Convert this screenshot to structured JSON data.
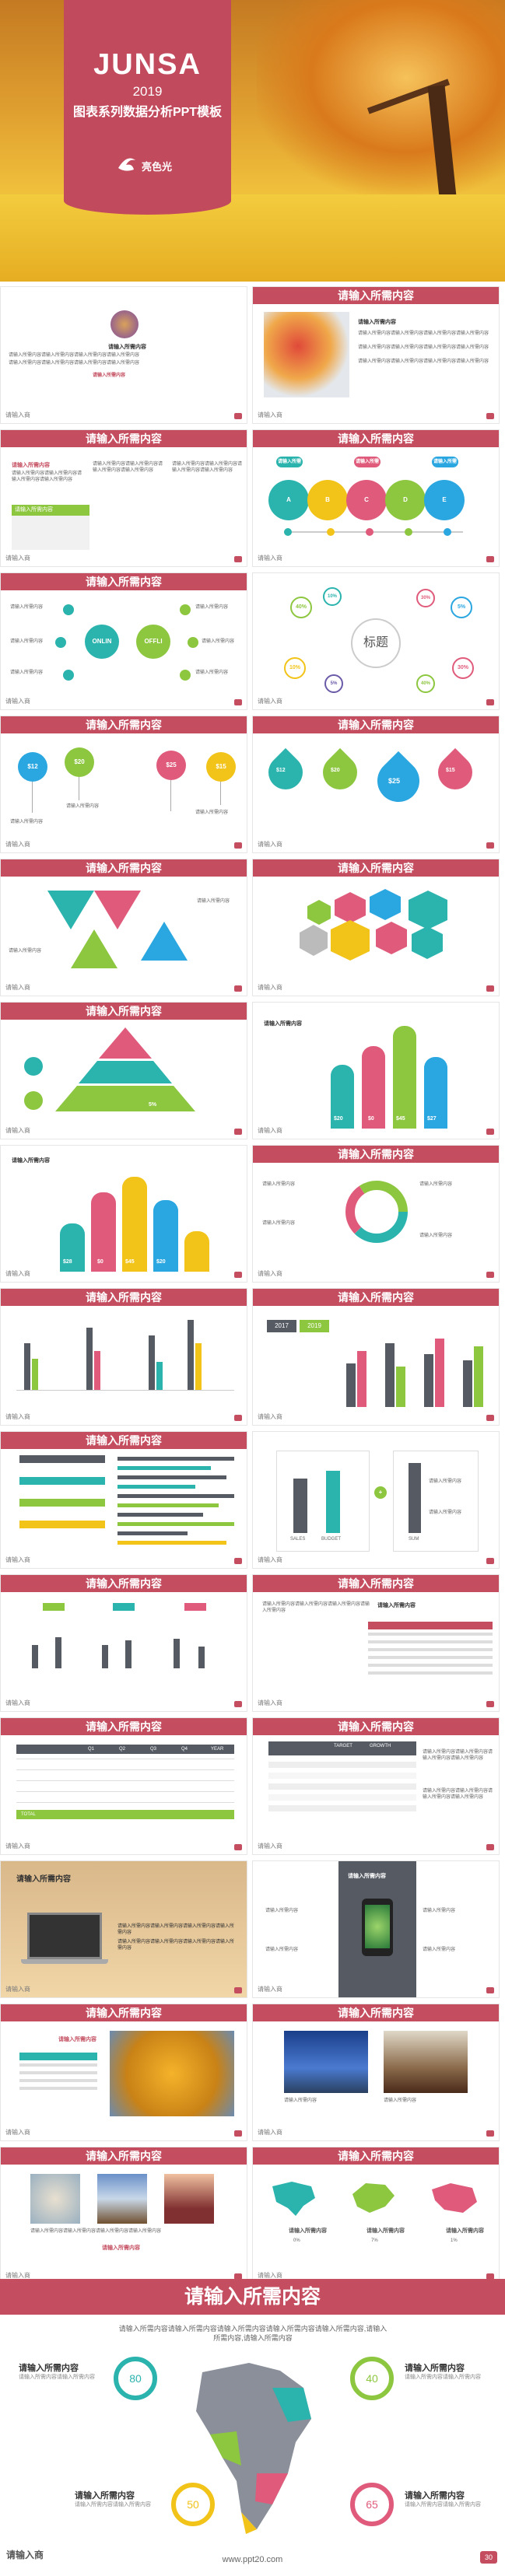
{
  "cover": {
    "title": "JUNSA",
    "year": "2019",
    "subtitle": "图表系列数据分析PPT模板",
    "logo_text": "亮色光"
  },
  "slide_title": "请输入所需内容",
  "slide_logo": "请输入商",
  "placeholder_label": "请输入所需内容",
  "body_text": "请输入所需内容请输入所需内容请输入所需内容请输入所需内容",
  "labels": {
    "online": "ONLIN",
    "offline": "OFFLI",
    "title_char": "标题",
    "price_12": "$12",
    "price_20": "$20",
    "price_25": "$25",
    "price_15": "$15",
    "bar_20": "$20",
    "bar_0": "$0",
    "bar_45": "$45",
    "bar_27": "$27",
    "bar_28": "$28",
    "year_2017": "2017",
    "year_2019": "2019",
    "pct_30": "30%",
    "pct_40": "40%",
    "pct_10": "10%",
    "pct_5": "5%",
    "sales": "SALES",
    "budget": "BUDGET",
    "sum": "SUM",
    "growth": "GROWTH",
    "value": "VALUE",
    "target": "TARGET",
    "total": "TOTAL",
    "year": "YEAR",
    "q1": "Q1",
    "q2": "Q2",
    "q3": "Q3",
    "q4": "Q4",
    "map_pct_a": "0%",
    "map_pct_b": "7%",
    "map_pct_c": "1%"
  },
  "final": {
    "title": "请输入所需内容",
    "paragraph": "请输入所需内容请输入所需内容请输入所需内容请输入所需内容请输入所需内容,请输入所需内容,请输入所需内容",
    "ring_1": "80",
    "ring_2": "40",
    "ring_3": "50",
    "ring_4": "65",
    "label": "请输入所需内容",
    "sub": "请输入所需内容请输入所需内容",
    "url": "www.ppt20.com",
    "logo": "请输入商",
    "page": "30"
  },
  "colors": {
    "accent": "#c44e60",
    "teal": "#2bb3ad",
    "green": "#8dc63f",
    "yellow": "#f2c318",
    "blue": "#2aa6e0",
    "pink": "#e05b7b",
    "purple": "#6b5aa7",
    "gray": "#555a63"
  }
}
